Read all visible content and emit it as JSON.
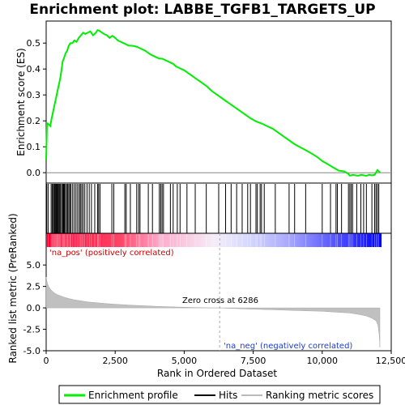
{
  "chart_data": {
    "type": "line",
    "title": "Enrichment plot: LABBE_TGFB1_TARGETS_UP",
    "panels": {
      "es": {
        "ylabel": "Enrichment score (ES)",
        "ylim": [
          -0.04,
          0.585
        ],
        "yticks": [
          0.0,
          0.1,
          0.2,
          0.3,
          0.4,
          0.5
        ],
        "ytick_labels": [
          "0.0",
          "0.1",
          "0.2",
          "0.3",
          "0.4",
          "0.5"
        ],
        "series": {
          "name": "Enrichment profile",
          "color": "#00ee00",
          "x": [
            0,
            30,
            60,
            100,
            150,
            200,
            240,
            280,
            320,
            360,
            400,
            440,
            480,
            520,
            560,
            600,
            640,
            700,
            760,
            820,
            880,
            950,
            1020,
            1100,
            1180,
            1260,
            1340,
            1420,
            1500,
            1600,
            1700,
            1800,
            1860,
            1920,
            2000,
            2100,
            2200,
            2300,
            2400,
            2500,
            2600,
            2700,
            2800,
            2900,
            3000,
            3100,
            3200,
            3300,
            3400,
            3500,
            3600,
            3700,
            3800,
            3900,
            4000,
            4100,
            4200,
            4300,
            4400,
            4500,
            4600,
            4700,
            4800,
            4900,
            5000,
            5200,
            5400,
            5600,
            5800,
            6000,
            6200,
            6400,
            6600,
            6800,
            7000,
            7200,
            7400,
            7600,
            7800,
            8000,
            8200,
            8400,
            8600,
            8800,
            9000,
            9200,
            9400,
            9600,
            9800,
            10000,
            10200,
            10400,
            10600,
            10800,
            10950,
            11000,
            11100,
            11200,
            11300,
            11400,
            11500,
            11600,
            11700,
            11800,
            11900,
            12000,
            12100
          ],
          "y": [
            0.05,
            0.19,
            0.19,
            0.185,
            0.18,
            0.21,
            0.23,
            0.25,
            0.27,
            0.29,
            0.31,
            0.33,
            0.35,
            0.37,
            0.4,
            0.43,
            0.44,
            0.46,
            0.47,
            0.49,
            0.5,
            0.5,
            0.51,
            0.505,
            0.52,
            0.53,
            0.54,
            0.535,
            0.54,
            0.545,
            0.53,
            0.54,
            0.55,
            0.548,
            0.542,
            0.535,
            0.53,
            0.52,
            0.528,
            0.52,
            0.51,
            0.505,
            0.5,
            0.495,
            0.49,
            0.49,
            0.488,
            0.485,
            0.48,
            0.475,
            0.47,
            0.462,
            0.455,
            0.45,
            0.445,
            0.44,
            0.44,
            0.435,
            0.43,
            0.425,
            0.42,
            0.41,
            0.405,
            0.4,
            0.395,
            0.38,
            0.365,
            0.35,
            0.335,
            0.315,
            0.3,
            0.285,
            0.27,
            0.255,
            0.24,
            0.225,
            0.21,
            0.198,
            0.19,
            0.18,
            0.17,
            0.155,
            0.14,
            0.125,
            0.11,
            0.098,
            0.087,
            0.075,
            0.062,
            0.045,
            0.033,
            0.02,
            0.008,
            0.005,
            -0.005,
            -0.012,
            -0.008,
            -0.01,
            -0.012,
            -0.008,
            -0.01,
            -0.012,
            -0.008,
            -0.01,
            -0.008,
            0.01,
            0.0
          ]
        },
        "zero_line": 0.0
      },
      "hits": {
        "legend_label": "Hits",
        "positions": [
          20,
          70,
          180,
          220,
          260,
          290,
          320,
          350,
          380,
          400,
          430,
          460,
          490,
          520,
          560,
          600,
          630,
          660,
          700,
          740,
          780,
          820,
          860,
          900,
          960,
          1020,
          1080,
          1140,
          1200,
          1240,
          1290,
          1340,
          1400,
          1480,
          1560,
          1640,
          1760,
          1860,
          1900,
          1950,
          2380,
          2450,
          2850,
          2900,
          3050,
          3280,
          3350,
          3400,
          3700,
          3850,
          4100,
          4150,
          4200,
          4250,
          4500,
          4600,
          4750,
          4850,
          5100,
          5400,
          5800,
          6250,
          6500,
          6700,
          6900,
          7100,
          7300,
          7400,
          7600,
          7650,
          7750,
          7800,
          7900,
          8300,
          8800,
          9000,
          9400,
          10000,
          10300,
          10500,
          10550,
          10700,
          10950,
          11000,
          11050,
          11100,
          11250,
          11400,
          11500,
          11600,
          11800,
          11900,
          11950,
          12000,
          12050
        ]
      },
      "metric": {
        "ylabel": "Ranked list metric (PreRanked)",
        "legend_label": "Ranking metric scores",
        "ylim": [
          -5.0,
          7.0
        ],
        "yticks": [
          -5.0,
          -2.5,
          0.0,
          2.5,
          5.0
        ],
        "ytick_labels": [
          "-5.0",
          "-2.5",
          "0.0",
          "2.5",
          "5.0"
        ],
        "x": [
          0,
          20,
          50,
          100,
          150,
          200,
          300,
          400,
          600,
          800,
          1000,
          1500,
          2000,
          2500,
          3000,
          3500,
          4000,
          4500,
          5000,
          5500,
          6000,
          6286,
          6600,
          7000,
          7500,
          8000,
          8500,
          9000,
          9500,
          10000,
          10500,
          11000,
          11400,
          11600,
          11800,
          11950,
          12020,
          12060,
          12080,
          12090
        ],
        "y": [
          3.6,
          3.2,
          2.8,
          2.45,
          2.2,
          2.0,
          1.75,
          1.55,
          1.3,
          1.1,
          0.95,
          0.7,
          0.55,
          0.42,
          0.33,
          0.25,
          0.18,
          0.12,
          0.07,
          0.03,
          0.0,
          0.0,
          -0.05,
          -0.1,
          -0.15,
          -0.2,
          -0.25,
          -0.3,
          -0.35,
          -0.4,
          -0.5,
          -0.6,
          -0.8,
          -0.95,
          -1.2,
          -1.5,
          -2.0,
          -3.0,
          -4.0,
          -4.6
        ]
      }
    },
    "ranked_bar": {
      "note": "red = positive correlation, blue = negative correlation"
    },
    "annotations": {
      "pos_label": "'na_pos' (positively correlated)",
      "neg_label": "'na_neg' (negatively correlated)",
      "zero_cross": "Zero cross at 6286",
      "zero_cross_value": 6286
    },
    "xaxis": {
      "label": "Rank in Ordered Dataset",
      "xlim": [
        0,
        12500
      ],
      "ticks": [
        0,
        2500,
        5000,
        7500,
        10000,
        12500
      ],
      "tick_labels": [
        "0",
        "2,500",
        "5,000",
        "7,500",
        "10,000",
        "12,500"
      ],
      "n_genes": 12100
    },
    "legend": {
      "position": "bottom",
      "items": [
        {
          "label": "Enrichment profile",
          "color": "#00ee00"
        },
        {
          "label": "Hits",
          "color": "#000000"
        },
        {
          "label": "Ranking metric scores",
          "color": "#bbbbbb"
        }
      ]
    }
  }
}
